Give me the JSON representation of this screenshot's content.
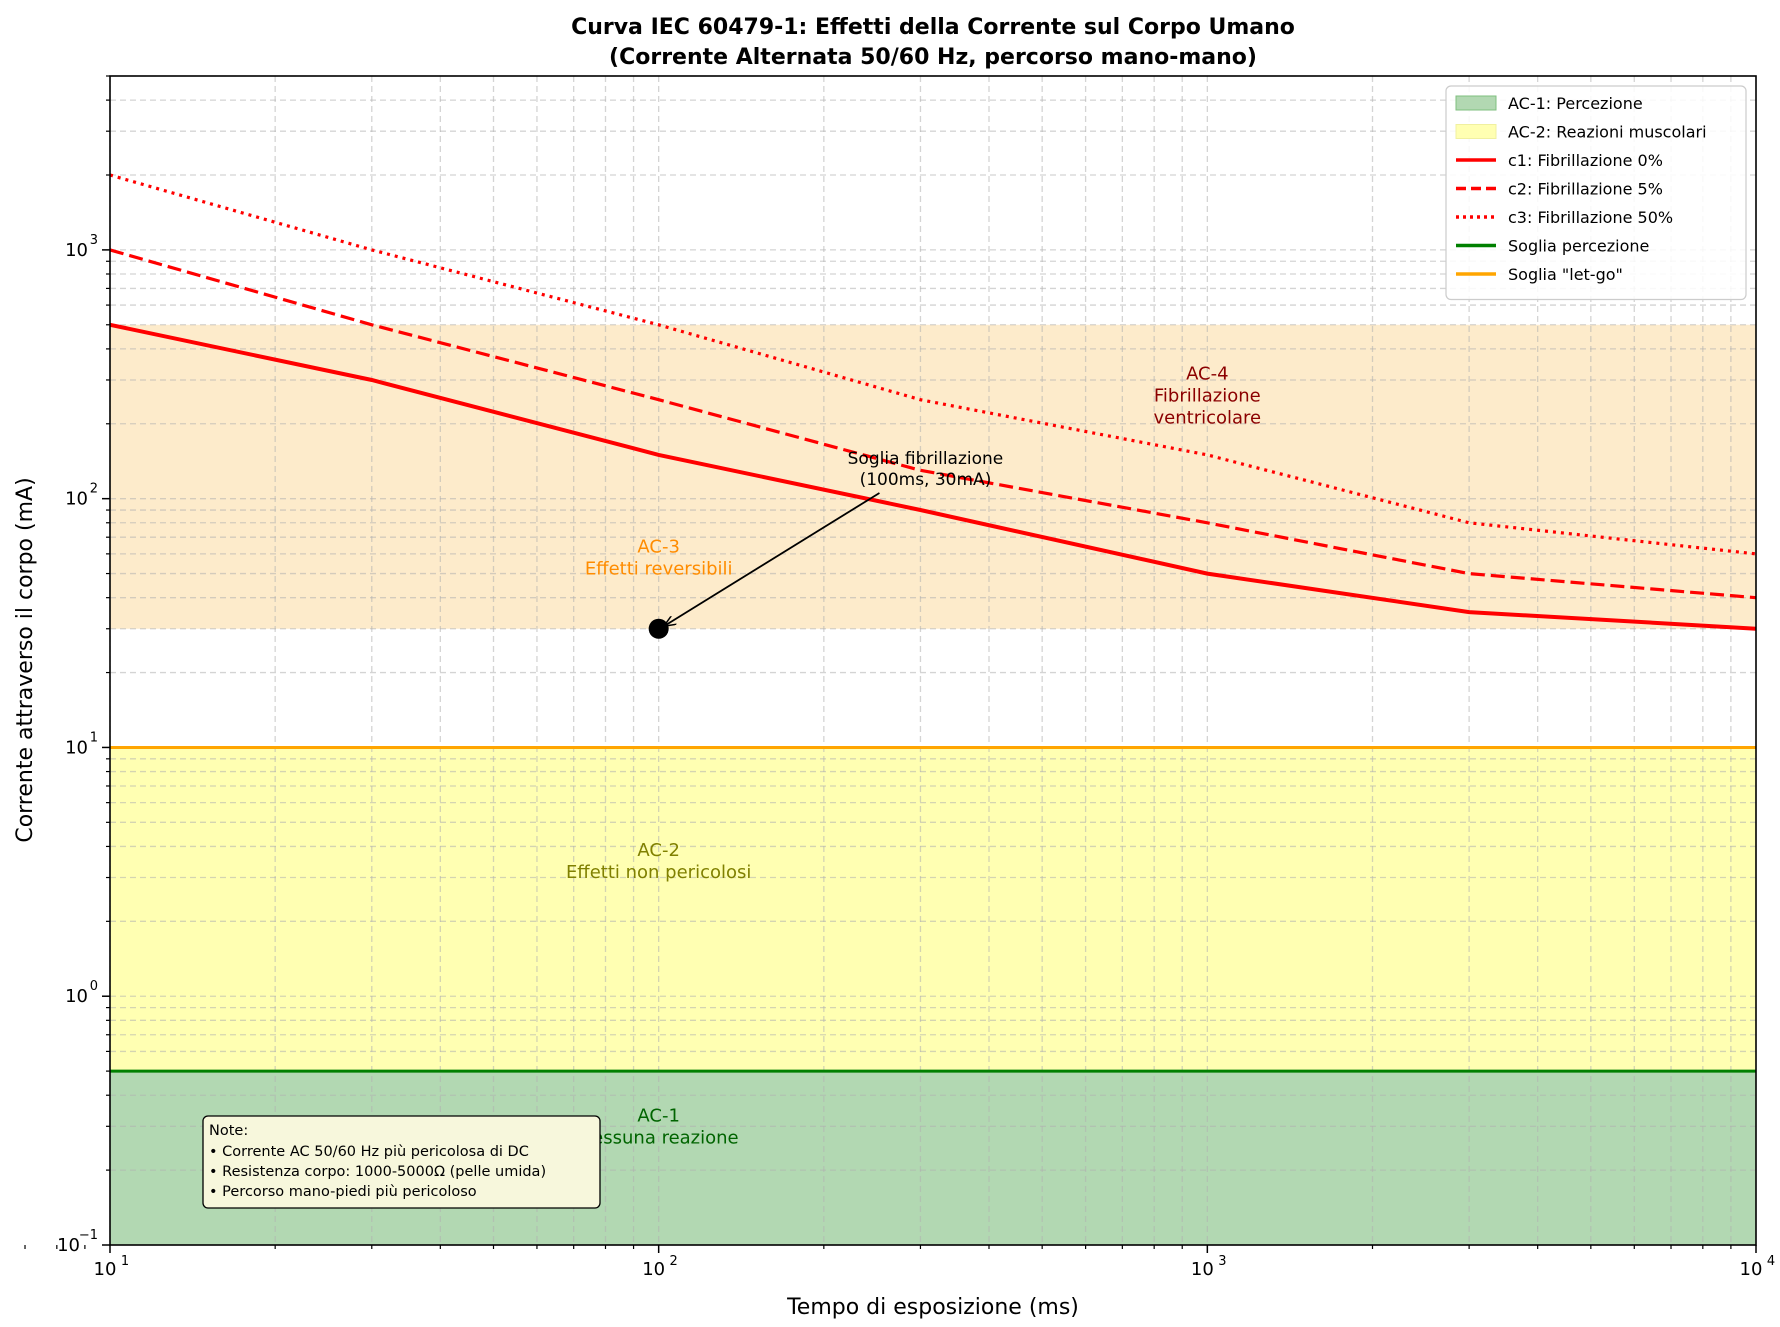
{
  "chart_data": {
    "type": "line",
    "title": "Curva IEC 60479-1: Effetti della Corrente sul Corpo Umano",
    "subtitle": "(Corrente Alternata 50/60 Hz, percorso mano-mano)",
    "xlabel": "Tempo di esposizione (ms)",
    "ylabel": "Corrente attraverso il corpo (mA)",
    "xscale": "log",
    "yscale": "log",
    "xlim": [
      10,
      10000
    ],
    "ylim": [
      0.1,
      5000
    ],
    "grid": true,
    "x_ticks": [
      {
        "value": 10,
        "base": "10",
        "exp": "1"
      },
      {
        "value": 100,
        "base": "10",
        "exp": "2"
      },
      {
        "value": 1000,
        "base": "10",
        "exp": "3"
      },
      {
        "value": 10000,
        "base": "10",
        "exp": "4"
      }
    ],
    "y_ticks": [
      {
        "value": 0.1,
        "base": "10",
        "exp": "−1"
      },
      {
        "value": 1,
        "base": "10",
        "exp": "0"
      },
      {
        "value": 10,
        "base": "10",
        "exp": "1"
      },
      {
        "value": 100,
        "base": "10",
        "exp": "2"
      },
      {
        "value": 1000,
        "base": "10",
        "exp": "3"
      }
    ],
    "zones": [
      {
        "name": "AC-1: Percezione",
        "ymin": 0.1,
        "ymax": 0.5,
        "color": "#b2d8b2",
        "in_legend": true
      },
      {
        "name": "AC-2: Reazioni muscolari",
        "ymin": 0.5,
        "ymax": 10,
        "color": "#ffffb2",
        "in_legend": true
      },
      {
        "name": "AC-3",
        "ymin": 30,
        "ymax": 500,
        "color": "#fdebcb",
        "in_legend": false
      }
    ],
    "series": [
      {
        "name": "c1: Fibrillazione 0%",
        "style": "solid",
        "color": "#ff0000",
        "x": [
          10,
          30,
          100,
          300,
          1000,
          3000,
          10000
        ],
        "y": [
          500,
          300,
          150,
          90,
          50,
          35,
          30
        ]
      },
      {
        "name": "c2: Fibrillazione 5%",
        "style": "dashed",
        "color": "#ff0000",
        "x": [
          10,
          30,
          100,
          300,
          1000,
          3000,
          10000
        ],
        "y": [
          1000,
          500,
          250,
          130,
          80,
          50,
          40
        ]
      },
      {
        "name": "c3: Fibrillazione 50%",
        "style": "dotted",
        "color": "#ff0000",
        "x": [
          10,
          30,
          100,
          300,
          1000,
          3000,
          10000
        ],
        "y": [
          2000,
          1000,
          500,
          250,
          150,
          80,
          60
        ]
      }
    ],
    "hlines": [
      {
        "name": "Soglia percezione",
        "y": 0.5,
        "color": "#008000"
      },
      {
        "name": "Soglia \"let-go\"",
        "y": 10,
        "color": "#ffa500"
      }
    ],
    "zone_labels": [
      {
        "line1": "AC-1",
        "line2": "Nessuna reazione",
        "x": 100,
        "y": 0.3,
        "color": "#006400"
      },
      {
        "line1": "AC-2",
        "line2": "Effetti non pericolosi",
        "x": 100,
        "y": 3.5,
        "color": "#808000"
      },
      {
        "line1": "AC-3",
        "line2": "Effetti reversibili",
        "x": 100,
        "y": 58,
        "color": "#ff8c00"
      },
      {
        "line1": "AC-4",
        "line2": "Fibrillazione",
        "line3": "ventricolare",
        "x": 1000,
        "y": 260,
        "color": "#8b0000"
      }
    ],
    "point": {
      "x": 100,
      "y": 30,
      "color": "#000000"
    },
    "annotation": {
      "line1": "Soglia fibrillazione",
      "line2": "(100ms, 30mA)",
      "x": 300,
      "y": 120
    },
    "note": {
      "title": "Note:",
      "lines": [
        "• Corrente AC 50/60 Hz più pericolosa di DC",
        "• Resistenza corpo: 1000-5000Ω (pelle umida)",
        "• Percorso mano-piedi più pericoloso"
      ]
    },
    "legend_position": "top-right"
  }
}
